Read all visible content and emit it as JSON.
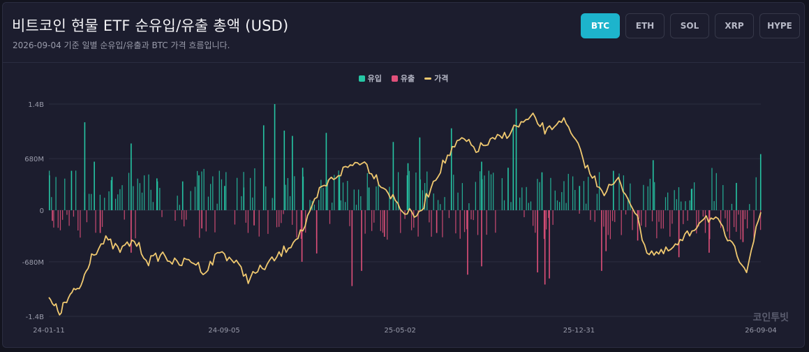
{
  "header": {
    "title": "비트코인 현물 ETF 순유입/유출 총액 (USD)",
    "subtitle": "2026-09-04 기준 일별 순유입/유출과 BTC 가격 흐름입니다."
  },
  "tabs": [
    {
      "label": "BTC",
      "active": true
    },
    {
      "label": "ETH",
      "active": false
    },
    {
      "label": "SOL",
      "active": false
    },
    {
      "label": "XRP",
      "active": false
    },
    {
      "label": "HYPE",
      "active": false
    }
  ],
  "watermark": "코인투빗",
  "colors": {
    "inflow": "#26c6a4",
    "outflow": "#e0507a",
    "price": "#f0c970",
    "grid": "#2c2e40",
    "accent": "#1db4cc"
  },
  "chart_data": {
    "type": "bar",
    "title": "",
    "legend": {
      "placement": "top-center",
      "entries": [
        "유입",
        "유출",
        "가격"
      ]
    },
    "grid": true,
    "ylim": [
      -1400000000,
      1400000000
    ],
    "y_ticks": [
      {
        "value": 1400000000,
        "label": "1.4B"
      },
      {
        "value": 680000000,
        "label": "680M"
      },
      {
        "value": 0,
        "label": "0"
      },
      {
        "value": -680000000,
        "label": "-680M"
      },
      {
        "value": -1400000000,
        "label": "-1.4B"
      }
    ],
    "x_ticks": [
      "24-01-11",
      "24-09-05",
      "25-05-02",
      "25-12-31",
      "26-09-04"
    ],
    "series": [
      {
        "name": "유입",
        "type": "bar",
        "color": "#26c6a4",
        "values_usd": [
          [
            "24-01-11",
            460000000
          ],
          [
            "24-02-10",
            520000000
          ],
          [
            "24-02-28",
            1160000000
          ],
          [
            "24-03-12",
            640000000
          ],
          [
            "24-04-05",
            440000000
          ],
          [
            "24-05-01",
            880000000
          ],
          [
            "24-06-05",
            420000000
          ],
          [
            "24-07-10",
            380000000
          ],
          [
            "24-08-01",
            460000000
          ],
          [
            "24-09-05",
            320000000
          ],
          [
            "24-10-01",
            300000000
          ],
          [
            "24-10-28",
            1120000000
          ],
          [
            "24-11-12",
            1400000000
          ],
          [
            "24-11-25",
            1050000000
          ],
          [
            "24-12-06",
            980000000
          ],
          [
            "24-12-20",
            560000000
          ],
          [
            "25-01-21",
            1020000000
          ],
          [
            "25-02-08",
            460000000
          ],
          [
            "25-03-20",
            300000000
          ],
          [
            "25-04-22",
            900000000
          ],
          [
            "25-05-12",
            620000000
          ],
          [
            "25-05-28",
            960000000
          ],
          [
            "25-07-10",
            1080000000
          ],
          [
            "25-08-20",
            640000000
          ],
          [
            "25-09-25",
            560000000
          ],
          [
            "25-10-02",
            1100000000
          ],
          [
            "25-10-06",
            1340000000
          ],
          [
            "25-11-10",
            500000000
          ],
          [
            "25-12-31",
            320000000
          ],
          [
            "26-02-15",
            520000000
          ],
          [
            "26-04-10",
            660000000
          ],
          [
            "26-06-01",
            280000000
          ],
          [
            "26-08-01",
            360000000
          ],
          [
            "26-09-03",
            740000000
          ]
        ]
      },
      {
        "name": "유출",
        "type": "bar",
        "color": "#e0507a",
        "values_usd": [
          [
            "24-01-15",
            -140000000
          ],
          [
            "24-03-20",
            -300000000
          ],
          [
            "24-05-01",
            -560000000
          ],
          [
            "24-08-05",
            -240000000
          ],
          [
            "24-10-15",
            -200000000
          ],
          [
            "24-12-19",
            -680000000
          ],
          [
            "25-01-08",
            -570000000
          ],
          [
            "25-02-25",
            -1000000000
          ],
          [
            "25-03-10",
            -800000000
          ],
          [
            "25-04-10",
            -350000000
          ],
          [
            "25-06-20",
            -300000000
          ],
          [
            "25-08-01",
            -850000000
          ],
          [
            "25-08-20",
            -740000000
          ],
          [
            "25-11-04",
            -820000000
          ],
          [
            "25-11-14",
            -980000000
          ],
          [
            "25-11-20",
            -900000000
          ],
          [
            "26-01-30",
            -800000000
          ],
          [
            "26-02-05",
            -540000000
          ],
          [
            "26-03-20",
            -400000000
          ],
          [
            "26-05-15",
            -620000000
          ],
          [
            "26-06-25",
            -560000000
          ],
          [
            "26-08-10",
            -420000000
          ]
        ]
      },
      {
        "name": "가격",
        "type": "line",
        "color": "#f0c970",
        "axis": "secondary (unlabeled)",
        "shape": "rises from low at 24-01 to a peak near 25-10, dips toward 26-01 lows, then recovers sharply at the end"
      }
    ]
  }
}
